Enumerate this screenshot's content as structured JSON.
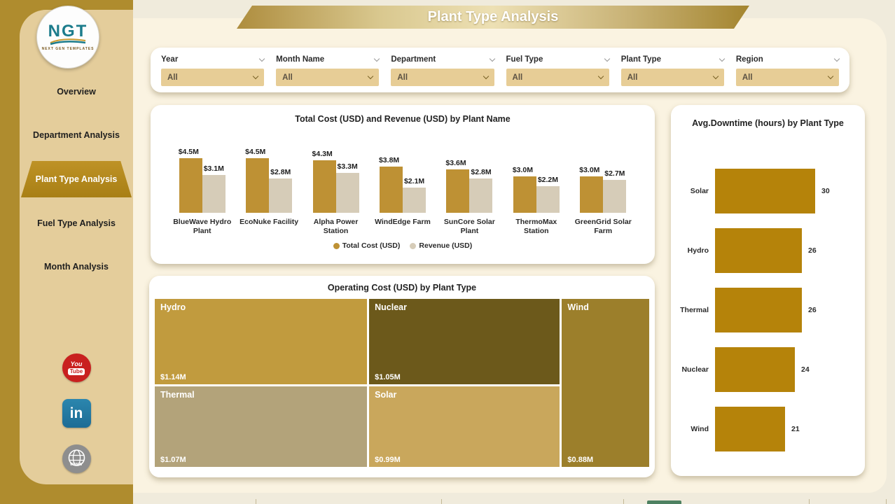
{
  "page_title": "Plant Type Analysis",
  "logo": {
    "abbr": "NGT",
    "tagline": "NEXT GEN TEMPLATES"
  },
  "sidebar": {
    "items": [
      {
        "label": "Overview",
        "active": false
      },
      {
        "label": "Department Analysis",
        "active": false
      },
      {
        "label": "Plant Type Analysis",
        "active": true
      },
      {
        "label": "Fuel Type Analysis",
        "active": false
      },
      {
        "label": "Month Analysis",
        "active": false
      }
    ],
    "social": {
      "youtube": {
        "line1": "You",
        "line2": "Tube"
      },
      "linkedin": {
        "label": "in"
      },
      "website": {
        "label": "www"
      }
    }
  },
  "filters": {
    "fields": [
      "Year",
      "Month Name",
      "Department",
      "Fuel Type",
      "Plant Type",
      "Region"
    ],
    "selected_value": "All"
  },
  "chart_data": [
    {
      "type": "bar",
      "title": "Total Cost (USD) and Revenue (USD) by Plant Name",
      "categories": [
        "BlueWave Hydro Plant",
        "EcoNuke Facility",
        "Alpha Power Station",
        "WindEdge Farm",
        "SunCore Solar Plant",
        "ThermoMax Station",
        "GreenGrid Solar Farm"
      ],
      "series": [
        {
          "name": "Total Cost (USD)",
          "color": "#BE9134",
          "values_musd": [
            4.5,
            4.5,
            4.3,
            3.8,
            3.6,
            3.0,
            3.0
          ],
          "labels": [
            "$4.5M",
            "$4.5M",
            "$4.3M",
            "$3.8M",
            "$3.6M",
            "$3.0M",
            "$3.0M"
          ]
        },
        {
          "name": "Revenue (USD)",
          "color": "#D6CCB8",
          "values_musd": [
            3.1,
            2.8,
            3.3,
            2.1,
            2.8,
            2.2,
            2.7
          ],
          "labels": [
            "$3.1M",
            "$2.8M",
            "$3.3M",
            "$2.1M",
            "$2.8M",
            "$2.2M",
            "$2.7M"
          ]
        }
      ],
      "ymax_musd": 4.5,
      "legend_position": "bottom",
      "grid": false
    },
    {
      "type": "treemap",
      "title": "Operating Cost (USD) by Plant Type",
      "columns": [
        {
          "width_pct": 43.3,
          "tiles": [
            {
              "label": "Hydro",
              "value_musd": 1.14,
              "value_label": "$1.14M",
              "color": "#C19B3E"
            },
            {
              "label": "Thermal",
              "value_musd": 1.07,
              "value_label": "$1.07M",
              "color": "#B3A37A"
            }
          ]
        },
        {
          "width_pct": 38.9,
          "tiles": [
            {
              "label": "Nuclear",
              "value_musd": 1.05,
              "value_label": "$1.05M",
              "color": "#6C591B"
            },
            {
              "label": "Solar",
              "value_musd": 0.99,
              "value_label": "$0.99M",
              "color": "#C9A75C"
            }
          ]
        },
        {
          "width_pct": 17.8,
          "tiles": [
            {
              "label": "Wind",
              "value_musd": 0.88,
              "value_label": "$0.88M",
              "color": "#9C7F2B"
            }
          ]
        }
      ]
    },
    {
      "type": "bar-horizontal",
      "title": "Avg.Downtime (hours) by Plant Type",
      "categories": [
        "Solar",
        "Hydro",
        "Thermal",
        "Nuclear",
        "Wind"
      ],
      "values": [
        30,
        26,
        26,
        24,
        21
      ],
      "bar_color": "#B5830A",
      "xmax": 30,
      "grid": false
    }
  ],
  "sheet_tabs": {
    "active_color": "#4D8161"
  }
}
